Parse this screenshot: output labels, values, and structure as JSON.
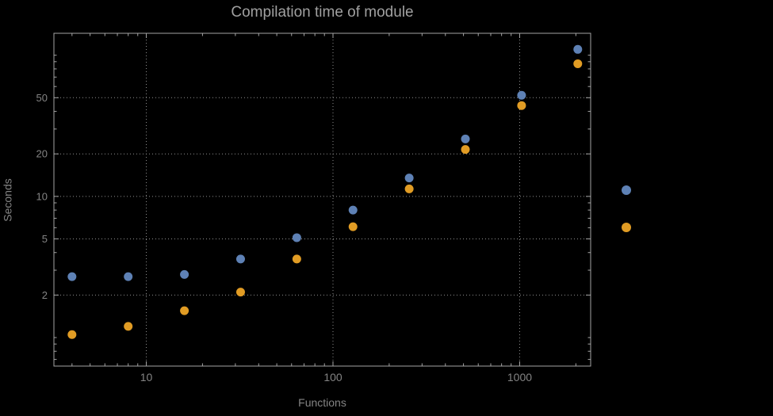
{
  "chart_data": {
    "type": "scatter",
    "title": "Compilation time of module",
    "xlabel": "Functions",
    "ylabel": "Seconds",
    "x_scale": "log",
    "y_scale": "log",
    "xlim": [
      3.2,
      2400
    ],
    "ylim": [
      0.628,
      143
    ],
    "grid": true,
    "grid_style": "dotted",
    "x_ticks": [
      {
        "value": 10,
        "label": "10"
      },
      {
        "value": 100,
        "label": "100"
      },
      {
        "value": 1000,
        "label": "1000"
      }
    ],
    "y_ticks": [
      {
        "value": 2,
        "label": "2"
      },
      {
        "value": 5,
        "label": "5"
      },
      {
        "value": 10,
        "label": "10"
      },
      {
        "value": 20,
        "label": "20"
      },
      {
        "value": 50,
        "label": "50"
      }
    ],
    "x": [
      4,
      8,
      16,
      32,
      64,
      128,
      256,
      512,
      1024,
      2048
    ],
    "series": [
      {
        "name": "blue-series",
        "color": "#5e81b5",
        "values": [
          2.7,
          2.7,
          2.8,
          3.6,
          5.1,
          8.0,
          13.5,
          25.5,
          52,
          110
        ]
      },
      {
        "name": "orange-series",
        "color": "#e19c24",
        "values": [
          1.05,
          1.2,
          1.55,
          2.1,
          3.6,
          6.1,
          11.3,
          21.5,
          44,
          87
        ]
      }
    ],
    "legend": {
      "position": "right",
      "labels_visible": false,
      "markers": [
        {
          "series": "blue-series"
        },
        {
          "series": "orange-series"
        }
      ]
    },
    "colors": {
      "background": "#000000",
      "frame": "#a5a5a5",
      "grid": "#8f8f8f",
      "text": "#848484",
      "title": "#a0a0a0"
    }
  }
}
